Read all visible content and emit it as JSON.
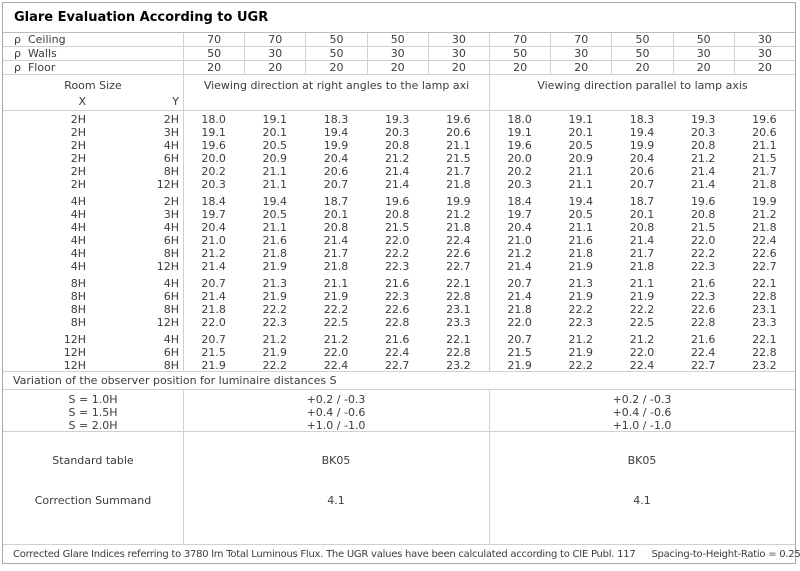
{
  "title": "Glare Evaluation According to UGR",
  "reflectance_rows": [
    {
      "symbol": "ρ",
      "name": "Ceiling",
      "values": [
        "70",
        "70",
        "50",
        "50",
        "30",
        "70",
        "70",
        "50",
        "50",
        "30"
      ]
    },
    {
      "symbol": "ρ",
      "name": "Walls",
      "values": [
        "50",
        "30",
        "50",
        "30",
        "30",
        "50",
        "30",
        "50",
        "30",
        "30"
      ]
    },
    {
      "symbol": "ρ",
      "name": "Floor",
      "values": [
        "20",
        "20",
        "20",
        "20",
        "20",
        "20",
        "20",
        "20",
        "20",
        "20"
      ]
    }
  ],
  "header": {
    "room_size": "Room Size",
    "x": "X",
    "y": "Y",
    "section_right_angles": "Viewing direction at right angles to the lamp axi",
    "section_parallel": "Viewing direction parallel to lamp axis"
  },
  "ugr_groups": [
    {
      "rows": [
        {
          "x": "2H",
          "y": "2H",
          "ra": [
            "18.0",
            "19.1",
            "18.3",
            "19.3",
            "19.6"
          ],
          "pa": [
            "18.0",
            "19.1",
            "18.3",
            "19.3",
            "19.6"
          ]
        },
        {
          "x": "2H",
          "y": "3H",
          "ra": [
            "19.1",
            "20.1",
            "19.4",
            "20.3",
            "20.6"
          ],
          "pa": [
            "19.1",
            "20.1",
            "19.4",
            "20.3",
            "20.6"
          ]
        },
        {
          "x": "2H",
          "y": "4H",
          "ra": [
            "19.6",
            "20.5",
            "19.9",
            "20.8",
            "21.1"
          ],
          "pa": [
            "19.6",
            "20.5",
            "19.9",
            "20.8",
            "21.1"
          ]
        },
        {
          "x": "2H",
          "y": "6H",
          "ra": [
            "20.0",
            "20.9",
            "20.4",
            "21.2",
            "21.5"
          ],
          "pa": [
            "20.0",
            "20.9",
            "20.4",
            "21.2",
            "21.5"
          ]
        },
        {
          "x": "2H",
          "y": "8H",
          "ra": [
            "20.2",
            "21.1",
            "20.6",
            "21.4",
            "21.7"
          ],
          "pa": [
            "20.2",
            "21.1",
            "20.6",
            "21.4",
            "21.7"
          ]
        },
        {
          "x": "2H",
          "y": "12H",
          "ra": [
            "20.3",
            "21.1",
            "20.7",
            "21.4",
            "21.8"
          ],
          "pa": [
            "20.3",
            "21.1",
            "20.7",
            "21.4",
            "21.8"
          ]
        }
      ]
    },
    {
      "rows": [
        {
          "x": "4H",
          "y": "2H",
          "ra": [
            "18.4",
            "19.4",
            "18.7",
            "19.6",
            "19.9"
          ],
          "pa": [
            "18.4",
            "19.4",
            "18.7",
            "19.6",
            "19.9"
          ]
        },
        {
          "x": "4H",
          "y": "3H",
          "ra": [
            "19.7",
            "20.5",
            "20.1",
            "20.8",
            "21.2"
          ],
          "pa": [
            "19.7",
            "20.5",
            "20.1",
            "20.8",
            "21.2"
          ]
        },
        {
          "x": "4H",
          "y": "4H",
          "ra": [
            "20.4",
            "21.1",
            "20.8",
            "21.5",
            "21.8"
          ],
          "pa": [
            "20.4",
            "21.1",
            "20.8",
            "21.5",
            "21.8"
          ]
        },
        {
          "x": "4H",
          "y": "6H",
          "ra": [
            "21.0",
            "21.6",
            "21.4",
            "22.0",
            "22.4"
          ],
          "pa": [
            "21.0",
            "21.6",
            "21.4",
            "22.0",
            "22.4"
          ]
        },
        {
          "x": "4H",
          "y": "8H",
          "ra": [
            "21.2",
            "21.8",
            "21.7",
            "22.2",
            "22.6"
          ],
          "pa": [
            "21.2",
            "21.8",
            "21.7",
            "22.2",
            "22.6"
          ]
        },
        {
          "x": "4H",
          "y": "12H",
          "ra": [
            "21.4",
            "21.9",
            "21.8",
            "22.3",
            "22.7"
          ],
          "pa": [
            "21.4",
            "21.9",
            "21.8",
            "22.3",
            "22.7"
          ]
        }
      ]
    },
    {
      "rows": [
        {
          "x": "8H",
          "y": "4H",
          "ra": [
            "20.7",
            "21.3",
            "21.1",
            "21.6",
            "22.1"
          ],
          "pa": [
            "20.7",
            "21.3",
            "21.1",
            "21.6",
            "22.1"
          ]
        },
        {
          "x": "8H",
          "y": "6H",
          "ra": [
            "21.4",
            "21.9",
            "21.9",
            "22.3",
            "22.8"
          ],
          "pa": [
            "21.4",
            "21.9",
            "21.9",
            "22.3",
            "22.8"
          ]
        },
        {
          "x": "8H",
          "y": "8H",
          "ra": [
            "21.8",
            "22.2",
            "22.2",
            "22.6",
            "23.1"
          ],
          "pa": [
            "21.8",
            "22.2",
            "22.2",
            "22.6",
            "23.1"
          ]
        },
        {
          "x": "8H",
          "y": "12H",
          "ra": [
            "22.0",
            "22.3",
            "22.5",
            "22.8",
            "23.3"
          ],
          "pa": [
            "22.0",
            "22.3",
            "22.5",
            "22.8",
            "23.3"
          ]
        }
      ]
    },
    {
      "rows": [
        {
          "x": "12H",
          "y": "4H",
          "ra": [
            "20.7",
            "21.2",
            "21.2",
            "21.6",
            "22.1"
          ],
          "pa": [
            "20.7",
            "21.2",
            "21.2",
            "21.6",
            "22.1"
          ]
        },
        {
          "x": "12H",
          "y": "6H",
          "ra": [
            "21.5",
            "21.9",
            "22.0",
            "22.4",
            "22.8"
          ],
          "pa": [
            "21.5",
            "21.9",
            "22.0",
            "22.4",
            "22.8"
          ]
        },
        {
          "x": "12H",
          "y": "8H",
          "ra": [
            "21.9",
            "22.2",
            "22.4",
            "22.7",
            "23.2"
          ],
          "pa": [
            "21.9",
            "22.2",
            "22.4",
            "22.7",
            "23.2"
          ]
        }
      ]
    }
  ],
  "variation_note": "Variation of the observer position for luminaire distances S",
  "spacing_rows": [
    {
      "label": "S = 1.0H",
      "ra": "+0.2 / -0.3",
      "pa": "+0.2 / -0.3"
    },
    {
      "label": "S = 1.5H",
      "ra": "+0.4 / -0.6",
      "pa": "+0.4 / -0.6"
    },
    {
      "label": "S = 2.0H",
      "ra": "+1.0 / -1.0",
      "pa": "+1.0 / -1.0"
    }
  ],
  "summary": {
    "standard_table_label": "Standard table",
    "standard_table_ra": "BK05",
    "standard_table_pa": "BK05",
    "correction_label": "Correction Summand",
    "correction_ra": "4.1",
    "correction_pa": "4.1"
  },
  "footer": {
    "text": "Corrected Glare Indices referring to 3780 lm Total Luminous Flux. The UGR values have been calculated according to CIE Publ. 117",
    "ratio": "Spacing-to-Height-Ratio = 0.25."
  }
}
